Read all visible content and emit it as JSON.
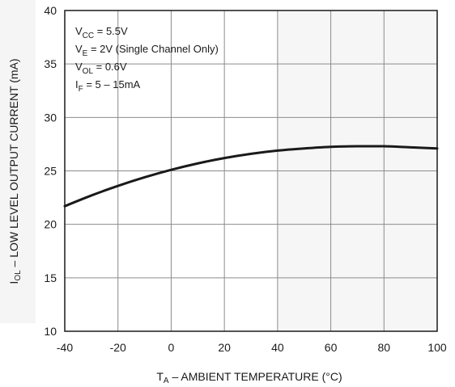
{
  "chart_data": {
    "type": "line",
    "title": "",
    "xlabel": "T",
    "xlabel_sub": "A",
    "xlabel_rest": " – AMBIENT TEMPERATURE (°C)",
    "ylabel": "I",
    "ylabel_sub": "OL",
    "ylabel_rest": " – LOW LEVEL OUTPUT CURRENT (mA)",
    "xlim": [
      -40,
      100
    ],
    "ylim": [
      10,
      40
    ],
    "xticks": [
      -40,
      -20,
      0,
      20,
      40,
      60,
      80,
      100
    ],
    "yticks": [
      10,
      15,
      20,
      25,
      30,
      35,
      40
    ],
    "grid": true,
    "series": [
      {
        "x": [
          -40,
          -30,
          -20,
          -10,
          0,
          10,
          20,
          30,
          40,
          50,
          60,
          70,
          80,
          90,
          100
        ],
        "y": [
          21.7,
          22.7,
          23.6,
          24.4,
          25.1,
          25.7,
          26.2,
          26.6,
          26.9,
          27.1,
          27.25,
          27.3,
          27.3,
          27.2,
          27.1
        ]
      }
    ],
    "annotations": [
      {
        "main": "V",
        "sub": "CC",
        "rest": " = 5.5V"
      },
      {
        "main": "V",
        "sub": "E",
        "rest": " = 2V (Single Channel Only)"
      },
      {
        "main": "V",
        "sub": "OL",
        "rest": " = 0.6V"
      },
      {
        "main": "I",
        "sub": "F",
        "rest": " = 5 – 15mA"
      }
    ]
  },
  "style": {
    "line_color": "#1a1a1a",
    "grid_color": "#8c8c8c",
    "band_color": "#eeeeee"
  }
}
